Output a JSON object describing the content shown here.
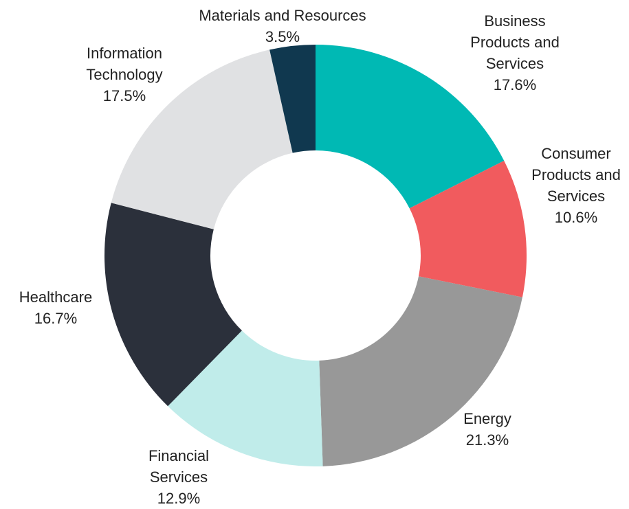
{
  "chart_data": {
    "type": "donut",
    "categories": [
      "Business Products and Services",
      "Consumer Products and Services",
      "Energy",
      "Financial Services",
      "Healthcare",
      "Information Technology",
      "Materials and Resources"
    ],
    "values": [
      17.6,
      10.6,
      21.3,
      12.9,
      16.7,
      17.5,
      3.5
    ],
    "value_labels": [
      "17.6%",
      "10.6%",
      "21.3%",
      "12.9%",
      "16.7%",
      "17.5%",
      "3.5%"
    ],
    "colors": [
      "#00b9b4",
      "#f15b5e",
      "#989898",
      "#c0ecea",
      "#2b303b",
      "#e0e1e3",
      "#10384f"
    ]
  }
}
